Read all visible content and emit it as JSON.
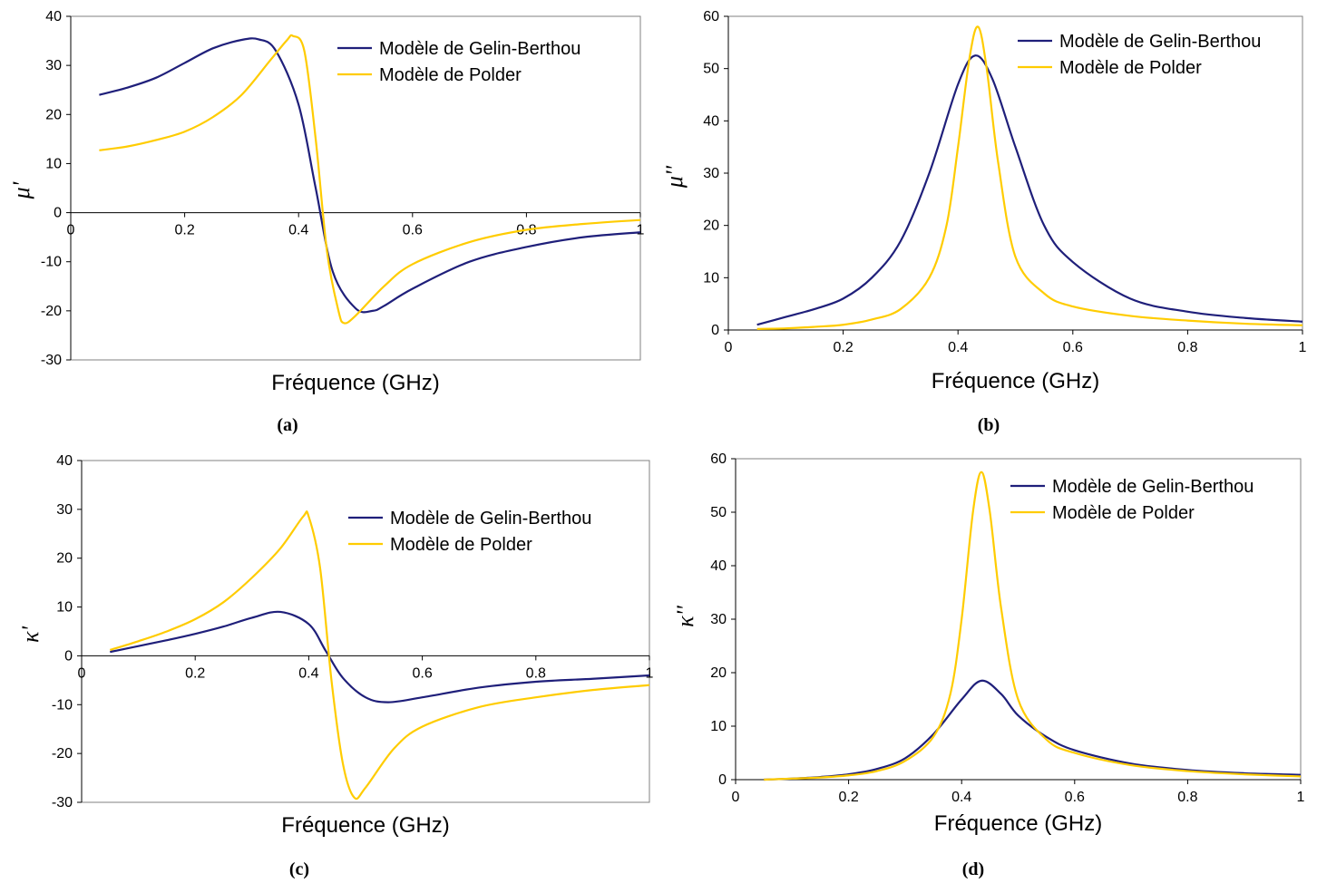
{
  "chart_data": [
    {
      "id": "a",
      "type": "line",
      "caption": "(a)",
      "xlabel": "Fréquence (GHz)",
      "ylabel": "μ'",
      "xlim": [
        0,
        1
      ],
      "ylim": [
        -30,
        40
      ],
      "xticks": [
        "0",
        "0.2",
        "0.4",
        "0.6",
        "0.8",
        "1"
      ],
      "yticks": [
        "40",
        "30",
        "20",
        "10",
        "0",
        "-10",
        "-20",
        "-30"
      ],
      "legend_position": "top-right",
      "series": [
        {
          "name": "Modèle de Gelin-Berthou",
          "color": "#1f1f7a",
          "x": [
            0.05,
            0.1,
            0.15,
            0.2,
            0.25,
            0.3,
            0.33,
            0.36,
            0.4,
            0.43,
            0.46,
            0.5,
            0.53,
            0.55,
            0.6,
            0.7,
            0.8,
            0.9,
            1.0
          ],
          "y": [
            24,
            25.5,
            27.5,
            30.5,
            33.5,
            35.2,
            35.3,
            33,
            22,
            5,
            -12,
            -19.5,
            -20,
            -19,
            -15.5,
            -10,
            -7,
            -5,
            -4
          ]
        },
        {
          "name": "Modèle de Polder",
          "color": "#ffcc00",
          "x": [
            0.05,
            0.1,
            0.15,
            0.2,
            0.25,
            0.3,
            0.35,
            0.38,
            0.39,
            0.41,
            0.43,
            0.45,
            0.47,
            0.48,
            0.5,
            0.55,
            0.6,
            0.7,
            0.8,
            0.9,
            1.0
          ],
          "y": [
            12.7,
            13.5,
            14.8,
            16.5,
            19.5,
            24,
            31,
            35.2,
            36,
            33,
            15,
            -8,
            -20,
            -22.5,
            -21,
            -15,
            -10.5,
            -6,
            -3.5,
            -2.3,
            -1.5
          ]
        }
      ]
    },
    {
      "id": "b",
      "type": "line",
      "caption": "(b)",
      "xlabel": "Fréquence (GHz)",
      "ylabel": "μ''",
      "xlim": [
        0,
        1
      ],
      "ylim": [
        0,
        60
      ],
      "xticks": [
        "0",
        "0.2",
        "0.4",
        "0.6",
        "0.8",
        "1"
      ],
      "yticks": [
        "60",
        "50",
        "40",
        "30",
        "20",
        "10",
        "0"
      ],
      "legend_position": "top-right",
      "series": [
        {
          "name": "Modèle de Gelin-Berthou",
          "color": "#1f1f7a",
          "x": [
            0.05,
            0.1,
            0.15,
            0.2,
            0.25,
            0.3,
            0.35,
            0.4,
            0.43,
            0.46,
            0.5,
            0.55,
            0.6,
            0.7,
            0.8,
            0.9,
            1.0
          ],
          "y": [
            1,
            2.5,
            4,
            6,
            10,
            17,
            30,
            47,
            52.5,
            48,
            35,
            20,
            13,
            6,
            3.5,
            2.3,
            1.6
          ]
        },
        {
          "name": "Modèle de Polder",
          "color": "#ffcc00",
          "x": [
            0.05,
            0.1,
            0.15,
            0.2,
            0.25,
            0.3,
            0.35,
            0.38,
            0.4,
            0.42,
            0.435,
            0.45,
            0.47,
            0.5,
            0.55,
            0.6,
            0.7,
            0.8,
            0.9,
            1.0
          ],
          "y": [
            0.2,
            0.3,
            0.6,
            1,
            2,
            4,
            10,
            20,
            35,
            52,
            58,
            50,
            32,
            14,
            7,
            4.5,
            2.7,
            1.8,
            1.2,
            0.9
          ]
        }
      ]
    },
    {
      "id": "c",
      "type": "line",
      "caption": "(c)",
      "xlabel": "Fréquence (GHz)",
      "ylabel": "κ'",
      "xlim": [
        0,
        1
      ],
      "ylim": [
        -30,
        40
      ],
      "xticks": [
        "0",
        "0.2",
        "0.4",
        "0.6",
        "0.8",
        "1"
      ],
      "yticks": [
        "40",
        "30",
        "20",
        "10",
        "0",
        "-10",
        "-20",
        "-30"
      ],
      "legend_position": "top-right",
      "series": [
        {
          "name": "Modèle de Gelin-Berthou",
          "color": "#1f1f7a",
          "x": [
            0.05,
            0.1,
            0.15,
            0.2,
            0.25,
            0.3,
            0.35,
            0.4,
            0.43,
            0.46,
            0.5,
            0.54,
            0.6,
            0.7,
            0.8,
            0.9,
            1.0
          ],
          "y": [
            0.8,
            2,
            3.2,
            4.5,
            6,
            7.8,
            9,
            6.5,
            1,
            -4.5,
            -8.5,
            -9.5,
            -8.5,
            -6.5,
            -5.3,
            -4.7,
            -4
          ]
        },
        {
          "name": "Modèle de Polder",
          "color": "#ffcc00",
          "x": [
            0.05,
            0.1,
            0.15,
            0.2,
            0.25,
            0.3,
            0.35,
            0.39,
            0.4,
            0.42,
            0.44,
            0.46,
            0.48,
            0.5,
            0.55,
            0.6,
            0.7,
            0.8,
            0.9,
            1.0
          ],
          "y": [
            1.2,
            3,
            5,
            7.5,
            11,
            16,
            22,
            28.5,
            28.5,
            18,
            -5,
            -22,
            -29,
            -27,
            -19,
            -14.5,
            -10.5,
            -8.5,
            -7,
            -6
          ]
        }
      ]
    },
    {
      "id": "d",
      "type": "line",
      "caption": "(d)",
      "xlabel": "Fréquence (GHz)",
      "ylabel": "κ''",
      "xlim": [
        0,
        1
      ],
      "ylim": [
        0,
        60
      ],
      "xticks": [
        "0",
        "0.2",
        "0.4",
        "0.6",
        "0.8",
        "1"
      ],
      "yticks": [
        "60",
        "50",
        "40",
        "30",
        "20",
        "10",
        "0"
      ],
      "legend_position": "top-right",
      "series": [
        {
          "name": "Modèle de Gelin-Berthou",
          "color": "#1f1f7a",
          "x": [
            0.05,
            0.1,
            0.15,
            0.2,
            0.25,
            0.3,
            0.35,
            0.4,
            0.435,
            0.47,
            0.5,
            0.55,
            0.6,
            0.7,
            0.8,
            0.9,
            1.0
          ],
          "y": [
            0,
            0.2,
            0.5,
            1,
            2,
            4,
            8.5,
            15,
            18.5,
            16,
            12,
            8,
            5.5,
            3,
            1.8,
            1.2,
            0.9
          ]
        },
        {
          "name": "Modèle de Polder",
          "color": "#ffcc00",
          "x": [
            0.05,
            0.1,
            0.15,
            0.2,
            0.25,
            0.3,
            0.35,
            0.38,
            0.4,
            0.42,
            0.435,
            0.45,
            0.47,
            0.5,
            0.55,
            0.6,
            0.7,
            0.8,
            0.9,
            1.0
          ],
          "y": [
            0,
            0.2,
            0.4,
            0.8,
            1.6,
            3.5,
            8,
            16,
            30,
            50,
            57.5,
            50,
            32,
            15,
            7.5,
            5,
            2.7,
            1.6,
            1,
            0.6
          ]
        }
      ]
    }
  ]
}
